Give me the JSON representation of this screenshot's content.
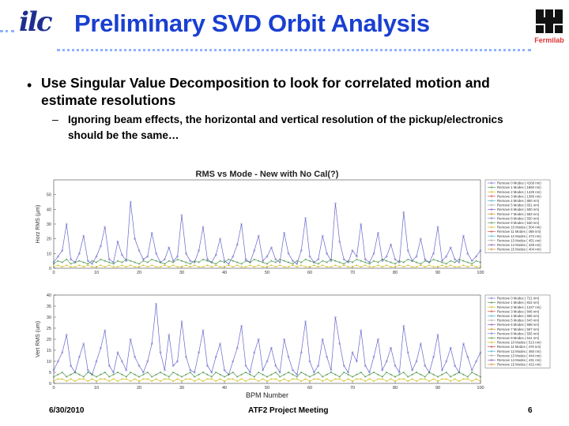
{
  "header": {
    "title": "Preliminary SVD Orbit Analysis",
    "logo_left_text": "ilc",
    "logo_right_text": "Fermilab"
  },
  "body": {
    "bullet_1": "Use Singular Value Decomposition to look for correlated motion and estimate resolutions",
    "sub_dash": "–",
    "sub_1": "Ignoring beam effects, the horizontal and vertical resolution of the pickup/electronics should be the same…"
  },
  "footer": {
    "date": "6/30/2010",
    "meeting": "ATF2 Project Meeting",
    "page": "6"
  },
  "colors": {
    "title": "#1a3fd1",
    "dots": "#8fb2ff",
    "fermi": "#cc2222",
    "series": [
      "#6666cc",
      "#3c8d3c",
      "#c8b400",
      "#cc3333",
      "#33aacc",
      "#999999",
      "#7744aa",
      "#cc7711"
    ]
  },
  "chart_data": [
    {
      "type": "line",
      "title": "RMS vs Mode - New with No Cal(?)",
      "ylabel": "Horz RMS (µm)",
      "xlabel": "",
      "xlim": [
        0,
        100
      ],
      "ylim": [
        0,
        60
      ],
      "yticks": [
        0,
        10,
        20,
        30,
        40,
        50
      ],
      "xticks": [
        0,
        10,
        20,
        30,
        40,
        50,
        60,
        70,
        80,
        90,
        100
      ],
      "legend_position": "top-right",
      "legend": [
        "Remove 0 Modes ( 4169 nm)",
        "Remove 1 Modes ( 1860 nm)",
        "Remove 2 Modes ( 1429 nm)",
        "Remove 3 Modes ( 1385 nm)",
        "Remove 4 Modes ( 850 nm)",
        "Remove 5 Modes ( 651 nm)",
        "Remove 6 Modes ( 600 nm)",
        "Remove 7 Modes ( 583 nm)",
        "Remove 8 Modes ( 550 nm)",
        "Remove 9 Modes ( 530 nm)",
        "Remove 10 Modes ( 504 nm)",
        "Remove 11 Modes ( 488 nm)",
        "Remove 12 Modes ( 474 nm)",
        "Remove 13 Modes ( 451 nm)",
        "Remove 14 Modes ( 428 nm)",
        "Remove 15 Modes ( 404 nm)"
      ],
      "series": [
        {
          "name": "Remove 0 Modes",
          "values": [
            4,
            8,
            12,
            30,
            6,
            4,
            10,
            22,
            5,
            3,
            8,
            15,
            28,
            6,
            4,
            18,
            9,
            5,
            45,
            20,
            12,
            6,
            8,
            24,
            10,
            4,
            6,
            14,
            5,
            8,
            36,
            10,
            5,
            4,
            12,
            28,
            6,
            4,
            9,
            20,
            5,
            3,
            8,
            16,
            30,
            6,
            4,
            12,
            22,
            5,
            8,
            14,
            6,
            4,
            24,
            10,
            5,
            3,
            12,
            34,
            8,
            4,
            6,
            22,
            10,
            5,
            44,
            18,
            6,
            4,
            12,
            8,
            30,
            6,
            4,
            10,
            24,
            5,
            8,
            16,
            6,
            4,
            38,
            12,
            5,
            8,
            20,
            6,
            4,
            10,
            28,
            5,
            8,
            14,
            6,
            4,
            22,
            10,
            5,
            8,
            12
          ]
        },
        {
          "name": "Remove 1 Modes",
          "values": [
            3,
            5,
            4,
            6,
            3,
            4,
            5,
            4,
            3,
            5,
            4,
            6,
            5,
            4,
            3,
            5,
            4,
            6,
            5,
            4,
            3,
            5,
            4,
            6,
            5,
            4,
            3,
            5,
            4,
            6,
            5,
            4,
            3,
            5,
            4,
            6,
            5,
            4,
            3,
            5,
            4,
            6,
            5,
            4,
            3,
            5,
            4,
            6,
            5,
            4,
            3,
            5,
            4,
            6,
            5,
            4,
            3,
            5,
            4,
            6,
            5,
            4,
            3,
            5,
            4,
            6,
            5,
            4,
            3,
            5,
            4,
            6,
            5,
            4,
            3,
            5,
            4,
            6,
            5,
            4,
            3,
            5,
            4,
            6,
            5,
            4,
            3,
            5,
            4,
            6,
            5,
            4,
            3,
            5,
            4,
            6,
            5,
            4,
            3,
            5,
            4
          ]
        },
        {
          "name": "Remove 15 Modes",
          "values": [
            1,
            2,
            1,
            2,
            1,
            1,
            2,
            1,
            2,
            1,
            1,
            2,
            1,
            2,
            1,
            1,
            2,
            1,
            2,
            1,
            1,
            2,
            1,
            2,
            1,
            1,
            2,
            1,
            2,
            1,
            1,
            2,
            1,
            2,
            1,
            1,
            2,
            1,
            2,
            1,
            1,
            2,
            1,
            2,
            1,
            1,
            2,
            1,
            2,
            1,
            1,
            2,
            1,
            2,
            1,
            1,
            2,
            1,
            2,
            1,
            1,
            2,
            1,
            2,
            1,
            1,
            2,
            1,
            2,
            1,
            1,
            2,
            1,
            2,
            1,
            1,
            2,
            1,
            2,
            1,
            1,
            2,
            1,
            2,
            1,
            1,
            2,
            1,
            2,
            1,
            1,
            2,
            1,
            2,
            1,
            1,
            2,
            1,
            2,
            1,
            1
          ]
        }
      ]
    },
    {
      "type": "line",
      "title": "",
      "ylabel": "Vert RMS (um)",
      "xlabel": "BPM Number",
      "xlim": [
        0,
        100
      ],
      "ylim": [
        0,
        40
      ],
      "yticks": [
        0,
        5,
        10,
        15,
        20,
        25,
        30,
        35,
        40
      ],
      "xticks": [
        0,
        10,
        20,
        30,
        40,
        50,
        60,
        70,
        80,
        90,
        100
      ],
      "legend_position": "top-right",
      "legend": [
        "Remove 0 Modes ( 721 nm)",
        "Remove 1 Modes ( 842 nm)",
        "Remove 2 Modes ( 1227 nm)",
        "Remove 3 Modes ( 846 nm)",
        "Remove 4 Modes ( 655 nm)",
        "Remove 5 Modes ( 643 nm)",
        "Remove 6 Modes ( 598 nm)",
        "Remove 7 Modes ( 567 nm)",
        "Remove 8 Modes ( 555 nm)",
        "Remove 9 Modes ( 541 nm)",
        "Remove 10 Modes ( 513 nm)",
        "Remove 11 Modes ( 476 nm)",
        "Remove 12 Modes ( 460 nm)",
        "Remove 13 Modes ( 444 nm)",
        "Remove 14 Modes ( 431 nm)",
        "Remove 15 Modes ( 422 nm)"
      ],
      "series": [
        {
          "name": "Remove 0 Modes",
          "values": [
            6,
            10,
            14,
            22,
            8,
            5,
            12,
            18,
            6,
            4,
            10,
            16,
            24,
            8,
            5,
            14,
            10,
            6,
            20,
            12,
            8,
            5,
            10,
            18,
            36,
            14,
            6,
            22,
            8,
            10,
            28,
            12,
            6,
            5,
            14,
            24,
            8,
            5,
            12,
            18,
            6,
            4,
            10,
            16,
            26,
            8,
            5,
            14,
            20,
            6,
            10,
            16,
            8,
            5,
            20,
            12,
            6,
            4,
            14,
            28,
            10,
            5,
            8,
            20,
            12,
            6,
            30,
            18,
            8,
            5,
            14,
            10,
            24,
            8,
            5,
            12,
            20,
            6,
            10,
            16,
            8,
            5,
            26,
            14,
            6,
            10,
            18,
            8,
            5,
            12,
            22,
            6,
            10,
            16,
            8,
            5,
            18,
            12,
            6,
            10,
            14
          ]
        },
        {
          "name": "Remove 1 Modes",
          "values": [
            3,
            4,
            5,
            3,
            4,
            5,
            4,
            3,
            5,
            4,
            3,
            4,
            5,
            3,
            4,
            5,
            4,
            3,
            5,
            4,
            3,
            4,
            5,
            3,
            4,
            5,
            4,
            3,
            5,
            4,
            3,
            4,
            5,
            3,
            4,
            5,
            4,
            3,
            5,
            4,
            3,
            4,
            5,
            3,
            4,
            5,
            4,
            3,
            5,
            4,
            3,
            4,
            5,
            3,
            4,
            5,
            4,
            3,
            5,
            4,
            3,
            4,
            5,
            3,
            4,
            5,
            4,
            3,
            5,
            4,
            3,
            4,
            5,
            3,
            4,
            5,
            4,
            3,
            5,
            4,
            3,
            4,
            5,
            3,
            4,
            5,
            4,
            3,
            5,
            4,
            3,
            4,
            5,
            3,
            4,
            5,
            4,
            3,
            5,
            4,
            3
          ]
        },
        {
          "name": "Remove 15 Modes",
          "values": [
            1,
            2,
            2,
            1,
            2,
            1,
            2,
            2,
            1,
            2,
            1,
            2,
            2,
            1,
            2,
            1,
            2,
            2,
            1,
            2,
            1,
            2,
            2,
            1,
            2,
            1,
            2,
            2,
            1,
            2,
            1,
            2,
            2,
            1,
            2,
            1,
            2,
            2,
            1,
            2,
            1,
            2,
            2,
            1,
            2,
            1,
            2,
            2,
            1,
            2,
            1,
            2,
            2,
            1,
            2,
            1,
            2,
            2,
            1,
            2,
            1,
            2,
            2,
            1,
            2,
            1,
            2,
            2,
            1,
            2,
            1,
            2,
            2,
            1,
            2,
            1,
            2,
            2,
            1,
            2,
            1,
            2,
            2,
            1,
            2,
            1,
            2,
            2,
            1,
            2,
            1,
            2,
            2,
            1,
            2,
            1,
            2,
            2,
            1,
            2,
            1
          ]
        }
      ]
    }
  ]
}
